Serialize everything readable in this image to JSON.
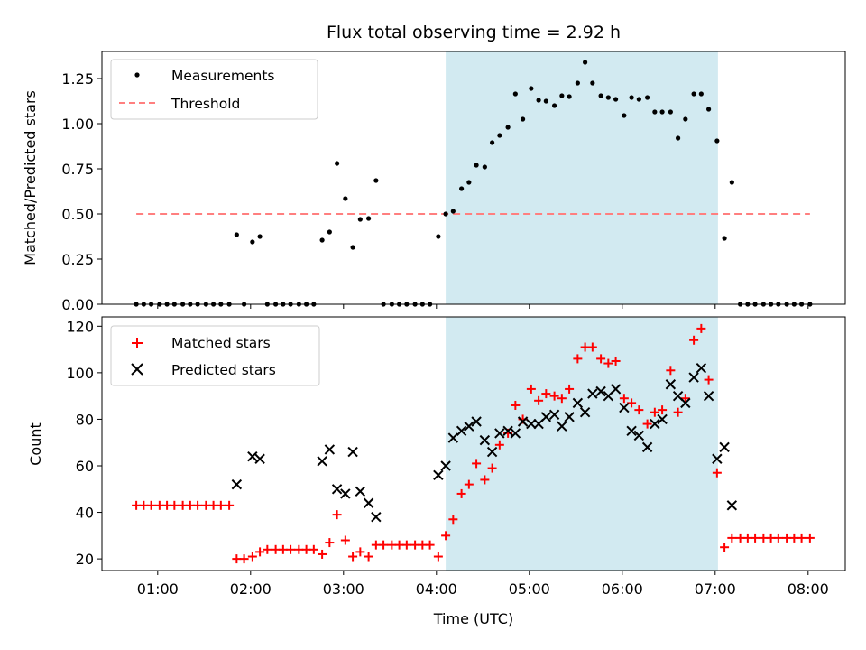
{
  "chart_data": [
    {
      "type": "scatter",
      "title": "Flux total observing time = 2.92 h",
      "ylabel": "Matched/Predicted stars",
      "xlabel": "",
      "xlim_hours": [
        0.4,
        8.4
      ],
      "ylim": [
        0,
        1.4
      ],
      "yticks": [
        0,
        0.25,
        0.5,
        0.75,
        1.0,
        1.25
      ],
      "ytick_labels": [
        "0.00",
        "0.25",
        "0.50",
        "0.75",
        "1.00",
        "1.25"
      ],
      "grid": false,
      "legend_position": "top-left",
      "shaded_window_hours": [
        4.1,
        7.03
      ],
      "shade_color": "#add8e6",
      "series": [
        {
          "name": "Measurements",
          "kind": "point",
          "color": "#000000",
          "points": [
            [
              0.77,
              0
            ],
            [
              0.85,
              0
            ],
            [
              0.93,
              0
            ],
            [
              1.02,
              0
            ],
            [
              1.1,
              0
            ],
            [
              1.18,
              0
            ],
            [
              1.27,
              0
            ],
            [
              1.35,
              0
            ],
            [
              1.43,
              0
            ],
            [
              1.52,
              0
            ],
            [
              1.6,
              0
            ],
            [
              1.68,
              0
            ],
            [
              1.77,
              0
            ],
            [
              1.85,
              0.385
            ],
            [
              1.93,
              0
            ],
            [
              2.02,
              0.345
            ],
            [
              2.1,
              0.375
            ],
            [
              2.18,
              0
            ],
            [
              2.27,
              0
            ],
            [
              2.35,
              0
            ],
            [
              2.43,
              0
            ],
            [
              2.52,
              0
            ],
            [
              2.6,
              0
            ],
            [
              2.68,
              0
            ],
            [
              2.77,
              0.355
            ],
            [
              2.85,
              0.4
            ],
            [
              2.93,
              0.78
            ],
            [
              3.02,
              0.585
            ],
            [
              3.1,
              0.315
            ],
            [
              3.18,
              0.47
            ],
            [
              3.27,
              0.475
            ],
            [
              3.35,
              0.685
            ],
            [
              3.43,
              0
            ],
            [
              3.52,
              0
            ],
            [
              3.6,
              0
            ],
            [
              3.68,
              0
            ],
            [
              3.77,
              0
            ],
            [
              3.85,
              0
            ],
            [
              3.93,
              0
            ],
            [
              4.02,
              0.375
            ],
            [
              4.1,
              0.5
            ],
            [
              4.18,
              0.515
            ],
            [
              4.27,
              0.64
            ],
            [
              4.35,
              0.675
            ],
            [
              4.43,
              0.77
            ],
            [
              4.52,
              0.76
            ],
            [
              4.6,
              0.895
            ],
            [
              4.68,
              0.935
            ],
            [
              4.77,
              0.98
            ],
            [
              4.85,
              1.165
            ],
            [
              4.93,
              1.025
            ],
            [
              5.02,
              1.195
            ],
            [
              5.1,
              1.13
            ],
            [
              5.18,
              1.125
            ],
            [
              5.27,
              1.1
            ],
            [
              5.35,
              1.155
            ],
            [
              5.43,
              1.15
            ],
            [
              5.52,
              1.225
            ],
            [
              5.6,
              1.34
            ],
            [
              5.68,
              1.225
            ],
            [
              5.77,
              1.155
            ],
            [
              5.85,
              1.145
            ],
            [
              5.93,
              1.135
            ],
            [
              6.02,
              1.045
            ],
            [
              6.1,
              1.145
            ],
            [
              6.18,
              1.135
            ],
            [
              6.27,
              1.145
            ],
            [
              6.35,
              1.065
            ],
            [
              6.43,
              1.065
            ],
            [
              6.52,
              1.065
            ],
            [
              6.6,
              0.92
            ],
            [
              6.68,
              1.025
            ],
            [
              6.77,
              1.165
            ],
            [
              6.85,
              1.165
            ],
            [
              6.93,
              1.08
            ],
            [
              7.02,
              0.905
            ],
            [
              7.1,
              0.365
            ],
            [
              7.18,
              0.675
            ],
            [
              7.27,
              0
            ],
            [
              7.35,
              0
            ],
            [
              7.43,
              0
            ],
            [
              7.52,
              0
            ],
            [
              7.6,
              0
            ],
            [
              7.68,
              0
            ],
            [
              7.77,
              0
            ],
            [
              7.85,
              0
            ],
            [
              7.93,
              0
            ],
            [
              8.02,
              0
            ]
          ]
        },
        {
          "name": "Threshold",
          "kind": "dashed-line",
          "color": "#ff7f7f",
          "x": [
            0.77,
            8.02
          ],
          "y": [
            0.5,
            0.5
          ]
        }
      ]
    },
    {
      "type": "scatter",
      "title": "",
      "ylabel": "Count",
      "xlabel": "Time (UTC)",
      "xlim_hours": [
        0.4,
        8.4
      ],
      "ylim": [
        15,
        124
      ],
      "yticks": [
        20,
        40,
        60,
        80,
        100,
        120
      ],
      "ytick_labels": [
        "20",
        "40",
        "60",
        "80",
        "100",
        "120"
      ],
      "xticks_hours": [
        1,
        2,
        3,
        4,
        5,
        6,
        7,
        8
      ],
      "xtick_labels": [
        "01:00",
        "02:00",
        "03:00",
        "04:00",
        "05:00",
        "06:00",
        "07:00",
        "08:00"
      ],
      "grid": false,
      "legend_position": "top-left",
      "shaded_window_hours": [
        4.1,
        7.03
      ],
      "shade_color": "#add8e6",
      "series": [
        {
          "name": "Matched stars",
          "kind": "plus",
          "color": "#ff0000",
          "points": [
            [
              0.77,
              43
            ],
            [
              0.85,
              43
            ],
            [
              0.93,
              43
            ],
            [
              1.02,
              43
            ],
            [
              1.1,
              43
            ],
            [
              1.18,
              43
            ],
            [
              1.27,
              43
            ],
            [
              1.35,
              43
            ],
            [
              1.43,
              43
            ],
            [
              1.52,
              43
            ],
            [
              1.6,
              43
            ],
            [
              1.68,
              43
            ],
            [
              1.77,
              43
            ],
            [
              1.85,
              20
            ],
            [
              1.93,
              20
            ],
            [
              2.02,
              21
            ],
            [
              2.1,
              23
            ],
            [
              2.18,
              24
            ],
            [
              2.27,
              24
            ],
            [
              2.35,
              24
            ],
            [
              2.43,
              24
            ],
            [
              2.52,
              24
            ],
            [
              2.6,
              24
            ],
            [
              2.68,
              24
            ],
            [
              2.77,
              22
            ],
            [
              2.85,
              27
            ],
            [
              2.93,
              39
            ],
            [
              3.02,
              28
            ],
            [
              3.1,
              21
            ],
            [
              3.18,
              23
            ],
            [
              3.27,
              21
            ],
            [
              3.35,
              26
            ],
            [
              3.43,
              26
            ],
            [
              3.52,
              26
            ],
            [
              3.6,
              26
            ],
            [
              3.68,
              26
            ],
            [
              3.77,
              26
            ],
            [
              3.85,
              26
            ],
            [
              3.93,
              26
            ],
            [
              4.02,
              21
            ],
            [
              4.1,
              30
            ],
            [
              4.18,
              37
            ],
            [
              4.27,
              48
            ],
            [
              4.35,
              52
            ],
            [
              4.43,
              61
            ],
            [
              4.52,
              54
            ],
            [
              4.6,
              59
            ],
            [
              4.68,
              69
            ],
            [
              4.77,
              74
            ],
            [
              4.85,
              86
            ],
            [
              4.93,
              80
            ],
            [
              5.02,
              93
            ],
            [
              5.1,
              88
            ],
            [
              5.18,
              91
            ],
            [
              5.27,
              90
            ],
            [
              5.35,
              89
            ],
            [
              5.43,
              93
            ],
            [
              5.52,
              106
            ],
            [
              5.6,
              111
            ],
            [
              5.68,
              111
            ],
            [
              5.77,
              106
            ],
            [
              5.85,
              104
            ],
            [
              5.93,
              105
            ],
            [
              6.02,
              89
            ],
            [
              6.1,
              87
            ],
            [
              6.18,
              84
            ],
            [
              6.27,
              78
            ],
            [
              6.35,
              83
            ],
            [
              6.43,
              84
            ],
            [
              6.52,
              101
            ],
            [
              6.6,
              83
            ],
            [
              6.68,
              89
            ],
            [
              6.77,
              114
            ],
            [
              6.85,
              119
            ],
            [
              6.93,
              97
            ],
            [
              7.02,
              57
            ],
            [
              7.1,
              25
            ],
            [
              7.18,
              29
            ],
            [
              7.27,
              29
            ],
            [
              7.35,
              29
            ],
            [
              7.43,
              29
            ],
            [
              7.52,
              29
            ],
            [
              7.6,
              29
            ],
            [
              7.68,
              29
            ],
            [
              7.77,
              29
            ],
            [
              7.85,
              29
            ],
            [
              7.93,
              29
            ],
            [
              8.02,
              29
            ]
          ]
        },
        {
          "name": "Predicted stars",
          "kind": "cross",
          "color": "#000000",
          "points": [
            [
              1.85,
              52
            ],
            [
              2.02,
              64
            ],
            [
              2.1,
              63
            ],
            [
              2.77,
              62
            ],
            [
              2.85,
              67
            ],
            [
              2.93,
              50
            ],
            [
              3.02,
              48
            ],
            [
              3.1,
              66
            ],
            [
              3.18,
              49
            ],
            [
              3.27,
              44
            ],
            [
              3.35,
              38
            ],
            [
              4.02,
              56
            ],
            [
              4.1,
              60
            ],
            [
              4.18,
              72
            ],
            [
              4.27,
              75
            ],
            [
              4.35,
              77
            ],
            [
              4.43,
              79
            ],
            [
              4.52,
              71
            ],
            [
              4.6,
              66
            ],
            [
              4.68,
              74
            ],
            [
              4.77,
              75
            ],
            [
              4.85,
              74
            ],
            [
              4.93,
              79
            ],
            [
              5.02,
              78
            ],
            [
              5.1,
              78
            ],
            [
              5.18,
              81
            ],
            [
              5.27,
              82
            ],
            [
              5.35,
              77
            ],
            [
              5.43,
              81
            ],
            [
              5.52,
              87
            ],
            [
              5.6,
              83
            ],
            [
              5.68,
              91
            ],
            [
              5.77,
              92
            ],
            [
              5.85,
              90
            ],
            [
              5.93,
              93
            ],
            [
              6.02,
              85
            ],
            [
              6.1,
              75
            ],
            [
              6.18,
              73
            ],
            [
              6.27,
              68
            ],
            [
              6.35,
              78
            ],
            [
              6.43,
              80
            ],
            [
              6.52,
              95
            ],
            [
              6.6,
              90
            ],
            [
              6.68,
              87
            ],
            [
              6.77,
              98
            ],
            [
              6.85,
              102
            ],
            [
              6.93,
              90
            ],
            [
              7.02,
              63
            ],
            [
              7.1,
              68
            ],
            [
              7.18,
              43
            ]
          ]
        }
      ]
    }
  ]
}
